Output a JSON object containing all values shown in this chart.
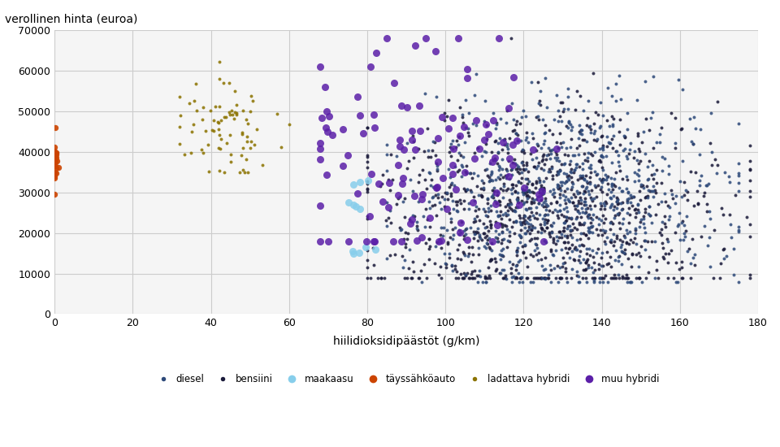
{
  "title_text": "verollinen hinta (euroa)",
  "xlabel": "hiilidioksidipäästöt (g/km)",
  "ylabel": "verollinen hinta (euroa)",
  "xlim": [
    0,
    180
  ],
  "ylim": [
    0,
    70000
  ],
  "xticks": [
    0,
    20,
    40,
    60,
    80,
    100,
    120,
    140,
    160,
    180
  ],
  "yticks": [
    0,
    10000,
    20000,
    30000,
    40000,
    50000,
    60000,
    70000
  ],
  "categories": [
    "diesel",
    "bensiini",
    "maakaasu",
    "täyssähköauto",
    "ladattava hybridi",
    "muu hybridi"
  ],
  "colors": {
    "diesel": "#2e4a7a",
    "bensiini": "#1a1a3a",
    "maakaasu": "#87ceeb",
    "täyssähköauto": "#cc4400",
    "ladattava hybridi": "#8b7300",
    "muu hybridi": "#5b1fa8"
  },
  "marker_sizes": {
    "diesel": 8,
    "bensiini": 8,
    "maakaasu": 14,
    "täyssähköauto": 14,
    "ladattava hybridi": 8,
    "muu hybridi": 14
  },
  "background_color": "#f5f5f5",
  "grid_color": "#cccccc",
  "seed": 42
}
